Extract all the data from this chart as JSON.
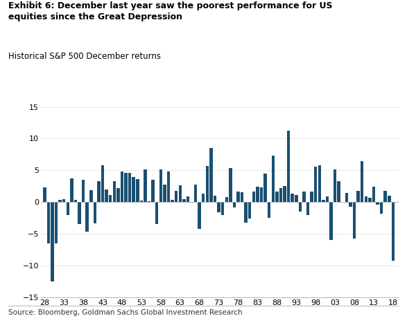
{
  "title_bold": "Exhibit 6: December last year saw the poorest performance for US\nequities since the Great Depression",
  "subtitle": "Historical S&P 500 December returns",
  "source": "Source: Bloomberg, Goldman Sachs Global Investment Research",
  "bar_color": "#1a4f72",
  "background_color": "#ffffff",
  "ylim": [
    -15,
    15
  ],
  "yticks": [
    -15,
    -10,
    -5,
    0,
    5,
    10,
    15
  ],
  "xtick_labels": [
    "28",
    "33",
    "38",
    "43",
    "48",
    "53",
    "58",
    "63",
    "68",
    "73",
    "78",
    "83",
    "88",
    "93",
    "98",
    "03",
    "08",
    "13",
    "18"
  ],
  "years": [
    1928,
    1929,
    1930,
    1931,
    1932,
    1933,
    1934,
    1935,
    1936,
    1937,
    1938,
    1939,
    1940,
    1941,
    1942,
    1943,
    1944,
    1945,
    1946,
    1947,
    1948,
    1949,
    1950,
    1951,
    1952,
    1953,
    1954,
    1955,
    1956,
    1957,
    1958,
    1959,
    1960,
    1961,
    1962,
    1963,
    1964,
    1965,
    1966,
    1967,
    1968,
    1969,
    1970,
    1971,
    1972,
    1973,
    1974,
    1975,
    1976,
    1977,
    1978,
    1979,
    1980,
    1981,
    1982,
    1983,
    1984,
    1985,
    1986,
    1987,
    1988,
    1989,
    1990,
    1991,
    1992,
    1993,
    1994,
    1995,
    1996,
    1997,
    1998,
    1999,
    2000,
    2001,
    2002,
    2003,
    2004,
    2005,
    2006,
    2007,
    2008,
    2009,
    2010,
    2011,
    2012,
    2013,
    2014,
    2015,
    2016,
    2017,
    2018
  ],
  "returns": [
    2.3,
    -6.5,
    -12.5,
    -6.5,
    0.4,
    0.5,
    -2.0,
    3.7,
    0.3,
    -3.5,
    3.5,
    -4.7,
    1.9,
    -3.4,
    3.3,
    5.8,
    2.0,
    1.1,
    3.3,
    2.2,
    4.8,
    4.6,
    4.6,
    4.0,
    3.6,
    0.2,
    5.1,
    0.1,
    3.5,
    -3.5,
    5.1,
    2.7,
    4.8,
    0.4,
    1.8,
    2.6,
    0.5,
    0.9,
    -0.1,
    2.7,
    -4.2,
    1.3,
    5.7,
    8.5,
    1.0,
    -1.6,
    -2.0,
    0.8,
    5.4,
    -0.8,
    1.7,
    1.5,
    -3.3,
    -2.6,
    1.7,
    2.4,
    2.3,
    4.5,
    -2.5,
    7.3,
    1.7,
    2.2,
    2.5,
    11.2,
    1.3,
    1.1,
    -1.5,
    1.7,
    -2.0,
    1.7,
    5.6,
    5.8,
    0.4,
    0.9,
    -6.0,
    5.1,
    3.3,
    0.0,
    1.4,
    -0.7,
    -5.8,
    1.8,
    6.5,
    0.9,
    0.7,
    2.4,
    -0.4,
    -1.8,
    1.8,
    1.0,
    -9.2
  ]
}
